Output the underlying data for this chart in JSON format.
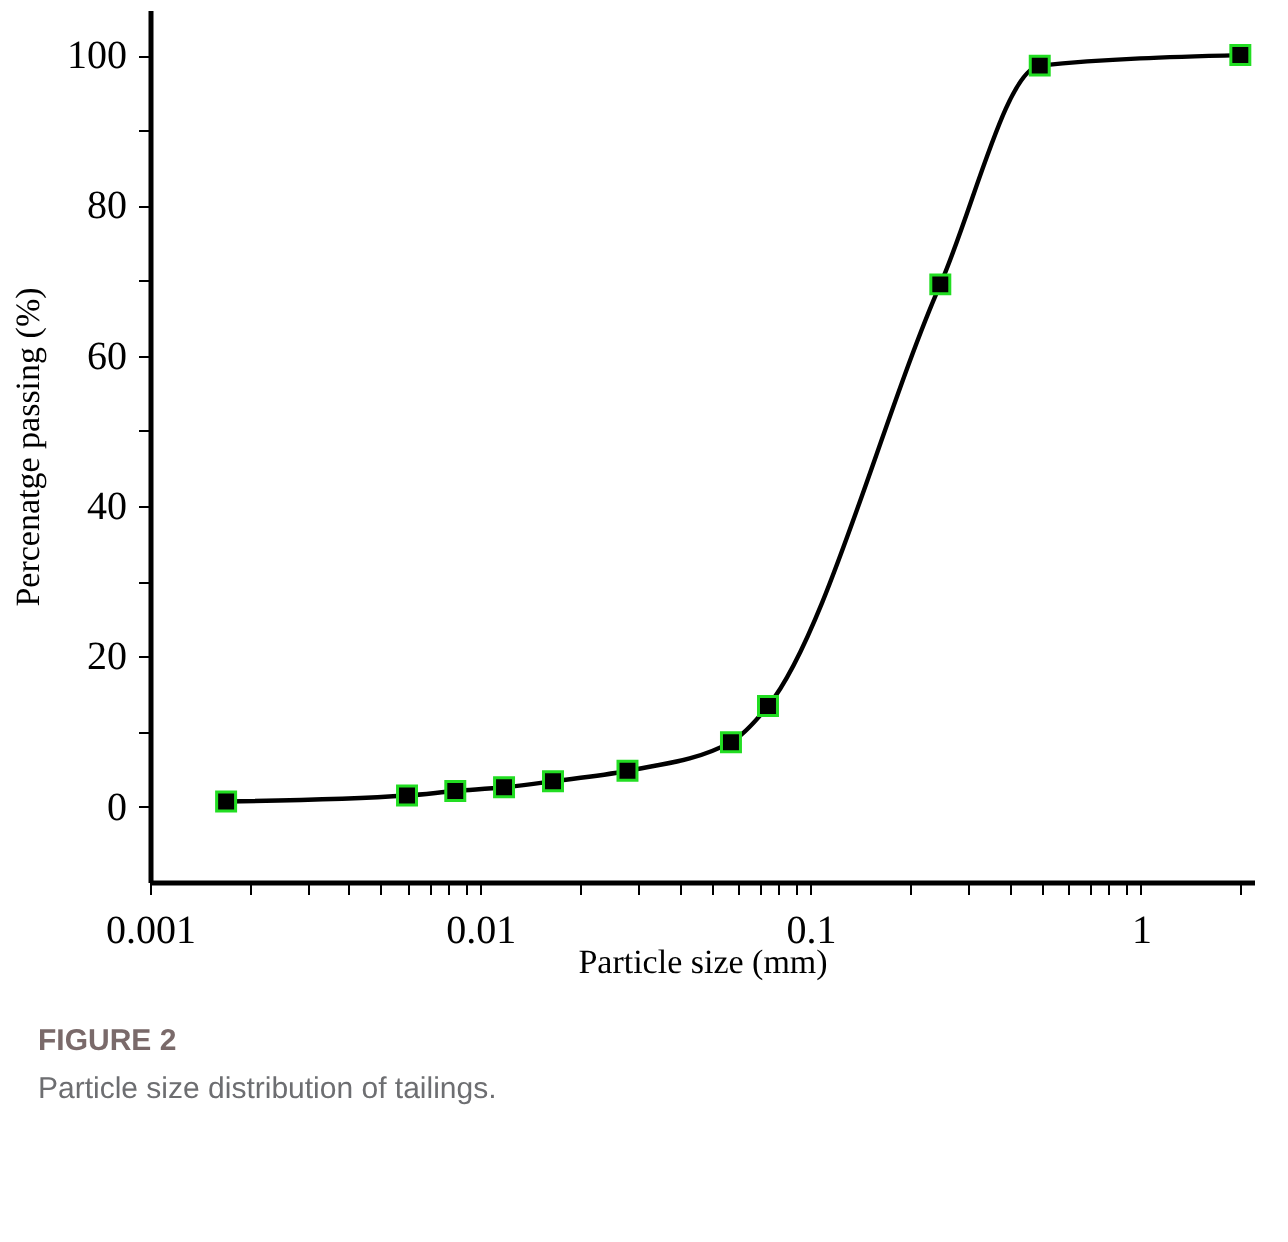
{
  "chart_data": {
    "type": "line",
    "xlabel": "Particle size (mm)",
    "ylabel": "Percenatge passing (%)",
    "x": [
      0.0017,
      0.006,
      0.0084,
      0.0118,
      0.0166,
      0.0279,
      0.0574,
      0.0743,
      0.247,
      0.494,
      2.0
    ],
    "series": [
      {
        "color": "#000000",
        "values": [
          0.7,
          1.5,
          2.1,
          2.6,
          3.4,
          4.8,
          8.6,
          13.4,
          69.5,
          98.6,
          100
        ]
      }
    ],
    "marker": "square",
    "log": "x",
    "grid": false,
    "xlim": [
      0.001,
      2.2
    ],
    "ylim": [
      -10,
      106
    ],
    "xticks": [
      0.001,
      {
        "value": 0.002,
        "label": null
      },
      {
        "value": 0.003,
        "label": null
      },
      {
        "value": 0.004,
        "label": null
      },
      {
        "value": 0.005,
        "label": null
      },
      {
        "value": 0.006,
        "label": null
      },
      {
        "value": 0.007,
        "label": null
      },
      {
        "value": 0.008,
        "label": null
      },
      {
        "value": 0.009,
        "label": null
      },
      0.01,
      {
        "value": 0.02,
        "label": null
      },
      {
        "value": 0.03,
        "label": null
      },
      {
        "value": 0.04,
        "label": null
      },
      {
        "value": 0.05,
        "label": null
      },
      {
        "value": 0.06,
        "label": null
      },
      {
        "value": 0.07,
        "label": null
      },
      {
        "value": 0.08,
        "label": null
      },
      {
        "value": 0.09,
        "label": null
      },
      0.1,
      {
        "value": 0.2,
        "label": null
      },
      {
        "value": 0.3,
        "label": null
      },
      {
        "value": 0.4,
        "label": null
      },
      {
        "value": 0.5,
        "label": null
      },
      {
        "value": 0.6,
        "label": null
      },
      {
        "value": 0.7,
        "label": null
      },
      {
        "value": 0.8,
        "label": null
      },
      {
        "value": 0.9,
        "label": null
      },
      1,
      {
        "value": 2,
        "label": null
      }
    ],
    "yticks": [
      0,
      {
        "value": 10,
        "label": null
      },
      20,
      {
        "value": 30,
        "label": null
      },
      40,
      {
        "value": 50,
        "label": null
      },
      60,
      {
        "value": 70,
        "label": null
      },
      80,
      {
        "value": 90,
        "label": null
      },
      100
    ],
    "annotations": [
      "FIGURE 2",
      "Particle size distribution of tailings."
    ]
  }
}
